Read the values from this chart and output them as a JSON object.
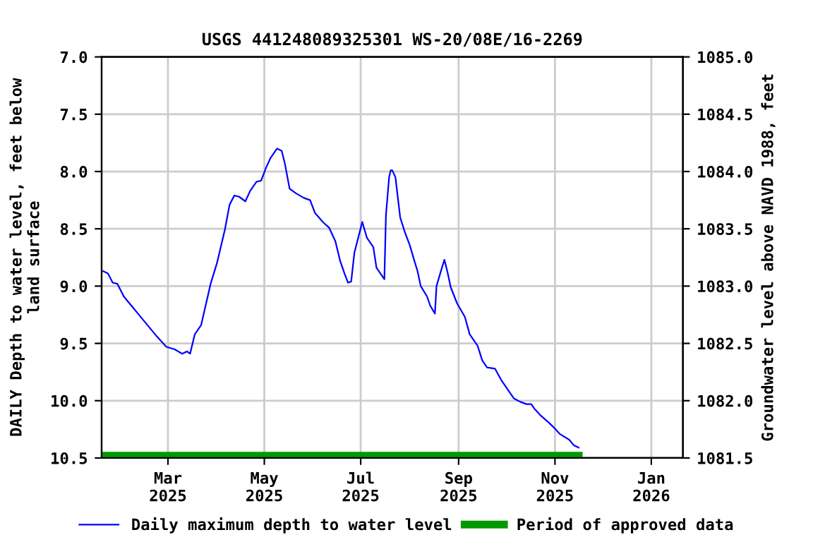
{
  "chart_data": {
    "type": "line",
    "title": "USGS 441248089325301 WS-20/08E/16-2269",
    "ylabel": "DAILY Depth to water level, feet below\nland surface",
    "y2label": "Groundwater level above NAVD 1988, feet",
    "series": [
      {
        "name": "Daily maximum depth to water level",
        "color": "#0000ff",
        "x": [
          "2025-01-19",
          "2025-01-22",
          "2025-01-25",
          "2025-01-28",
          "2025-02-01",
          "2025-02-07",
          "2025-02-10",
          "2025-02-16",
          "2025-02-22",
          "2025-02-28",
          "2025-03-05",
          "2025-03-10",
          "2025-03-13",
          "2025-03-15",
          "2025-03-18",
          "2025-03-22",
          "2025-03-28",
          "2025-04-01",
          "2025-04-06",
          "2025-04-09",
          "2025-04-12",
          "2025-04-15",
          "2025-04-19",
          "2025-04-22",
          "2025-04-26",
          "2025-04-29",
          "2025-05-02",
          "2025-05-05",
          "2025-05-09",
          "2025-05-12",
          "2025-05-14",
          "2025-05-17",
          "2025-05-21",
          "2025-05-26",
          "2025-05-30",
          "2025-06-02",
          "2025-06-07",
          "2025-06-11",
          "2025-06-15",
          "2025-06-18",
          "2025-06-21",
          "2025-06-23",
          "2025-06-25",
          "2025-06-27",
          "2025-07-02",
          "2025-07-05",
          "2025-07-09",
          "2025-07-11",
          "2025-07-15",
          "2025-07-16",
          "2025-07-17",
          "2025-07-19",
          "2025-07-20",
          "2025-07-21",
          "2025-07-23",
          "2025-07-26",
          "2025-07-29",
          "2025-08-01",
          "2025-08-04",
          "2025-08-06",
          "2025-08-08",
          "2025-08-12",
          "2025-08-14",
          "2025-08-17",
          "2025-08-18",
          "2025-08-21",
          "2025-08-23",
          "2025-08-25",
          "2025-08-27",
          "2025-08-31",
          "2025-09-05",
          "2025-09-08",
          "2025-09-13",
          "2025-09-16",
          "2025-09-19",
          "2025-09-24",
          "2025-09-28",
          "2025-10-06",
          "2025-10-10",
          "2025-10-14",
          "2025-10-17",
          "2025-10-19",
          "2025-10-23",
          "2025-10-28",
          "2025-10-31",
          "2025-11-04",
          "2025-11-10",
          "2025-11-13",
          "2025-11-16"
        ],
        "values": [
          8.87,
          8.89,
          8.97,
          8.98,
          9.09,
          9.19,
          9.24,
          9.34,
          9.44,
          9.53,
          9.55,
          9.59,
          9.57,
          9.59,
          9.42,
          9.34,
          8.98,
          8.8,
          8.51,
          8.29,
          8.21,
          8.22,
          8.26,
          8.17,
          8.09,
          8.08,
          7.97,
          7.88,
          7.8,
          7.82,
          7.93,
          8.15,
          8.19,
          8.23,
          8.25,
          8.36,
          8.44,
          8.49,
          8.61,
          8.78,
          8.9,
          8.97,
          8.96,
          8.71,
          8.44,
          8.58,
          8.66,
          8.84,
          8.92,
          8.94,
          8.38,
          8.05,
          7.99,
          7.99,
          8.05,
          8.4,
          8.53,
          8.64,
          8.78,
          8.87,
          9.0,
          9.09,
          9.17,
          9.24,
          9.0,
          8.86,
          8.77,
          8.88,
          9.01,
          9.15,
          9.27,
          9.42,
          9.52,
          9.65,
          9.71,
          9.72,
          9.82,
          9.98,
          10.01,
          10.03,
          10.03,
          10.07,
          10.13,
          10.19,
          10.23,
          10.29,
          10.34,
          10.39,
          10.41
        ]
      },
      {
        "name": "Period of approved data",
        "color": "#009900",
        "x": [
          "2025-01-18",
          "2025-11-16"
        ],
        "values": [
          10.48,
          10.48
        ]
      }
    ],
    "xlim": [
      "2025-01-18",
      "2026-01-21"
    ],
    "xticks": [
      {
        "value": "2025-03-01",
        "label": "Mar\n2025"
      },
      {
        "value": "2025-05-01",
        "label": "May\n2025"
      },
      {
        "value": "2025-07-01",
        "label": "Jul\n2025"
      },
      {
        "value": "2025-09-01",
        "label": "Sep\n2025"
      },
      {
        "value": "2025-11-01",
        "label": "Nov\n2025"
      },
      {
        "value": "2026-01-01",
        "label": "Jan\n2026"
      }
    ],
    "ylim": [
      10.5,
      7.0
    ],
    "yticks": [
      {
        "value": 7.0,
        "label": "7.0"
      },
      7.5,
      {
        "value": 8.0,
        "label": "8.0"
      },
      8.5,
      {
        "value": 9.0,
        "label": "9.0"
      },
      9.5,
      {
        "value": 10.0,
        "label": "10.0"
      },
      10.5
    ],
    "y2lim": [
      1081.5,
      1085.0
    ],
    "y2ticks": [
      {
        "value": 1085.0,
        "label": "1085.0"
      },
      1084.5,
      {
        "value": 1084.0,
        "label": "1084.0"
      },
      1083.5,
      {
        "value": 1083.0,
        "label": "1083.0"
      },
      1082.5,
      {
        "value": 1082.0,
        "label": "1082.0"
      },
      1081.5
    ],
    "grid": true,
    "legend": "bottom",
    "line_style": "solid",
    "marker": "none"
  }
}
